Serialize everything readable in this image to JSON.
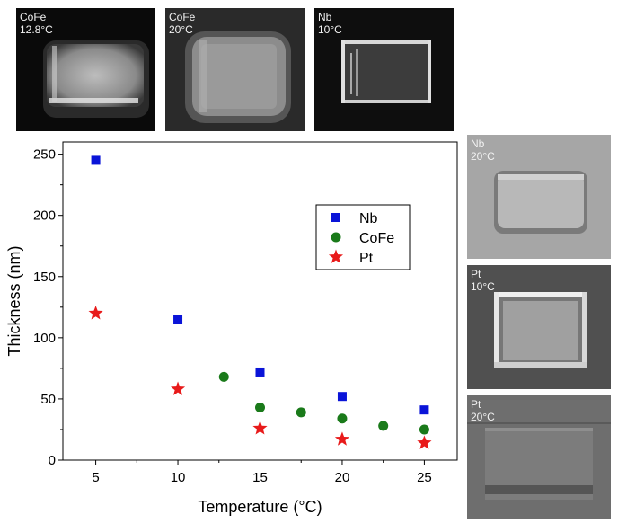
{
  "sem_images": [
    {
      "id": "top-1",
      "material": "CoFe",
      "temperature": "12.8°C",
      "style": "dark"
    },
    {
      "id": "top-2",
      "material": "CoFe",
      "temperature": "20°C",
      "style": "grey"
    },
    {
      "id": "top-3",
      "material": "Nb",
      "temperature": "10°C",
      "style": "dark-edges"
    },
    {
      "id": "side-1",
      "material": "Nb",
      "temperature": "20°C",
      "style": "light"
    },
    {
      "id": "side-2",
      "material": "Pt",
      "temperature": "10°C",
      "style": "bright"
    },
    {
      "id": "side-3",
      "material": "Pt",
      "temperature": "20°C",
      "style": "dim"
    }
  ],
  "chart_data": {
    "type": "scatter",
    "xlabel": "Temperature (°C)",
    "ylabel": "Thickness (nm)",
    "xlim": [
      3,
      27
    ],
    "ylim": [
      0,
      260
    ],
    "xticks": [
      5,
      10,
      15,
      20,
      25
    ],
    "yticks": [
      0,
      50,
      100,
      150,
      200,
      250
    ],
    "legend_position": "top-right",
    "series": [
      {
        "name": "Nb",
        "marker": "square",
        "color": "#0a14d8",
        "x": [
          5,
          10,
          15,
          20,
          25
        ],
        "y": [
          245,
          115,
          72,
          52,
          41
        ]
      },
      {
        "name": "CoFe",
        "marker": "circle",
        "color": "#1a7a1a",
        "x": [
          12.8,
          15,
          17.5,
          20,
          22.5,
          25
        ],
        "y": [
          68,
          43,
          39,
          34,
          28,
          25
        ]
      },
      {
        "name": "Pt",
        "marker": "star",
        "color": "#e81a1a",
        "x": [
          5,
          10,
          15,
          20,
          25
        ],
        "y": [
          120,
          58,
          26,
          17,
          14
        ]
      }
    ]
  }
}
